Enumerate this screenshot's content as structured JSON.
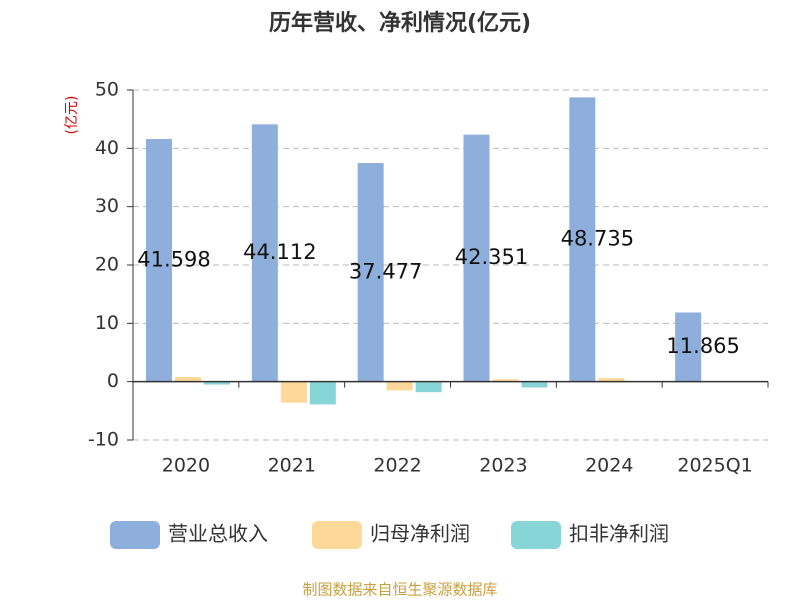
{
  "chart_data": {
    "type": "bar",
    "title": "历年营收、净利情况(亿元)",
    "y_label": "(亿元)",
    "categories": [
      "2020",
      "2021",
      "2022",
      "2023",
      "2024",
      "2025Q1"
    ],
    "series": [
      {
        "name": "营业总收入",
        "color": "#8eaedc",
        "values": [
          41.598,
          44.112,
          37.477,
          42.351,
          48.735,
          11.865
        ],
        "value_labels": [
          "41.598",
          "44.112",
          "37.477",
          "42.351",
          "48.735",
          "11.865"
        ]
      },
      {
        "name": "归母净利润",
        "color": "#fdd898",
        "values": [
          0.8,
          -3.6,
          -1.5,
          0.4,
          0.6,
          null
        ]
      },
      {
        "name": "扣非净利润",
        "color": "#88d5d8",
        "values": [
          -0.5,
          -3.9,
          -1.8,
          -1.0,
          null,
          null
        ]
      }
    ],
    "ylim": [
      -10,
      50
    ],
    "yticks": [
      -10,
      0,
      10,
      20,
      30,
      40,
      50
    ],
    "grid": true,
    "footer": "制图数据来自恒生聚源数据库"
  }
}
